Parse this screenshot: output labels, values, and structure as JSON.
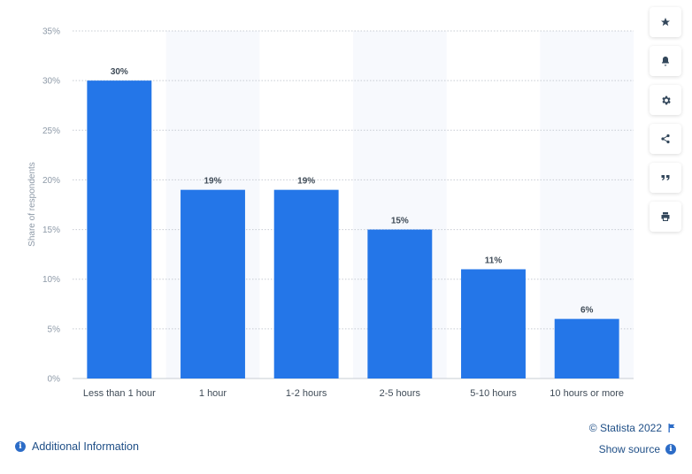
{
  "chart_data": {
    "type": "bar",
    "categories": [
      "Less than 1 hour",
      "1 hour",
      "1-2 hours",
      "2-5 hours",
      "5-10 hours",
      "10 hours or more"
    ],
    "values": [
      30,
      19,
      19,
      15,
      11,
      6
    ],
    "data_labels": [
      "30%",
      "19%",
      "19%",
      "15%",
      "11%",
      "6%"
    ],
    "ylabel": "Share of respondents",
    "xlabel": "",
    "ylim": [
      0,
      35
    ],
    "yticks": [
      0,
      5,
      10,
      15,
      20,
      25,
      30,
      35
    ],
    "ytick_labels": [
      "0%",
      "5%",
      "10%",
      "15%",
      "20%",
      "25%",
      "30%",
      "35%"
    ],
    "grid": true,
    "bar_color": "#2476e8",
    "alt_band_color": "#f7f9fd"
  },
  "toolbar": {
    "buttons": [
      {
        "name": "favorite-button",
        "icon": "star-icon"
      },
      {
        "name": "notification-button",
        "icon": "bell-icon"
      },
      {
        "name": "settings-button",
        "icon": "gear-icon"
      },
      {
        "name": "share-button",
        "icon": "share-icon"
      },
      {
        "name": "cite-button",
        "icon": "quote-icon"
      },
      {
        "name": "print-button",
        "icon": "print-icon"
      }
    ]
  },
  "footer": {
    "additional_info": "Additional Information",
    "copyright": "© Statista 2022",
    "show_source": "Show source"
  }
}
